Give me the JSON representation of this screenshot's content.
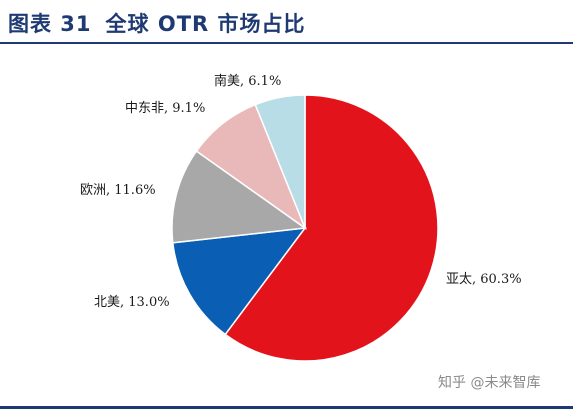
{
  "header": {
    "figure_label": "图表 31",
    "title": "全球 OTR 市场占比",
    "accent_color": "#1f3a73"
  },
  "chart_data": {
    "type": "pie",
    "title": "全球 OTR 市场占比",
    "slices": [
      {
        "label": "亚太, 60.3%",
        "value": 60.3,
        "color": "#e3131b"
      },
      {
        "label": "北美, 13.0%",
        "value": 13.0,
        "color": "#0a5fb4"
      },
      {
        "label": "欧洲, 11.6%",
        "value": 11.6,
        "color": "#a8a8a8"
      },
      {
        "label": "中东非, 9.1%",
        "value": 9.1,
        "color": "#e9b9ba"
      },
      {
        "label": "南美, 6.1%",
        "value": 6.1,
        "color": "#b8dde6"
      }
    ],
    "start_angle": "12 o'clock",
    "direction": "clockwise",
    "legend": "none"
  },
  "watermark": "知乎 @未来智库"
}
